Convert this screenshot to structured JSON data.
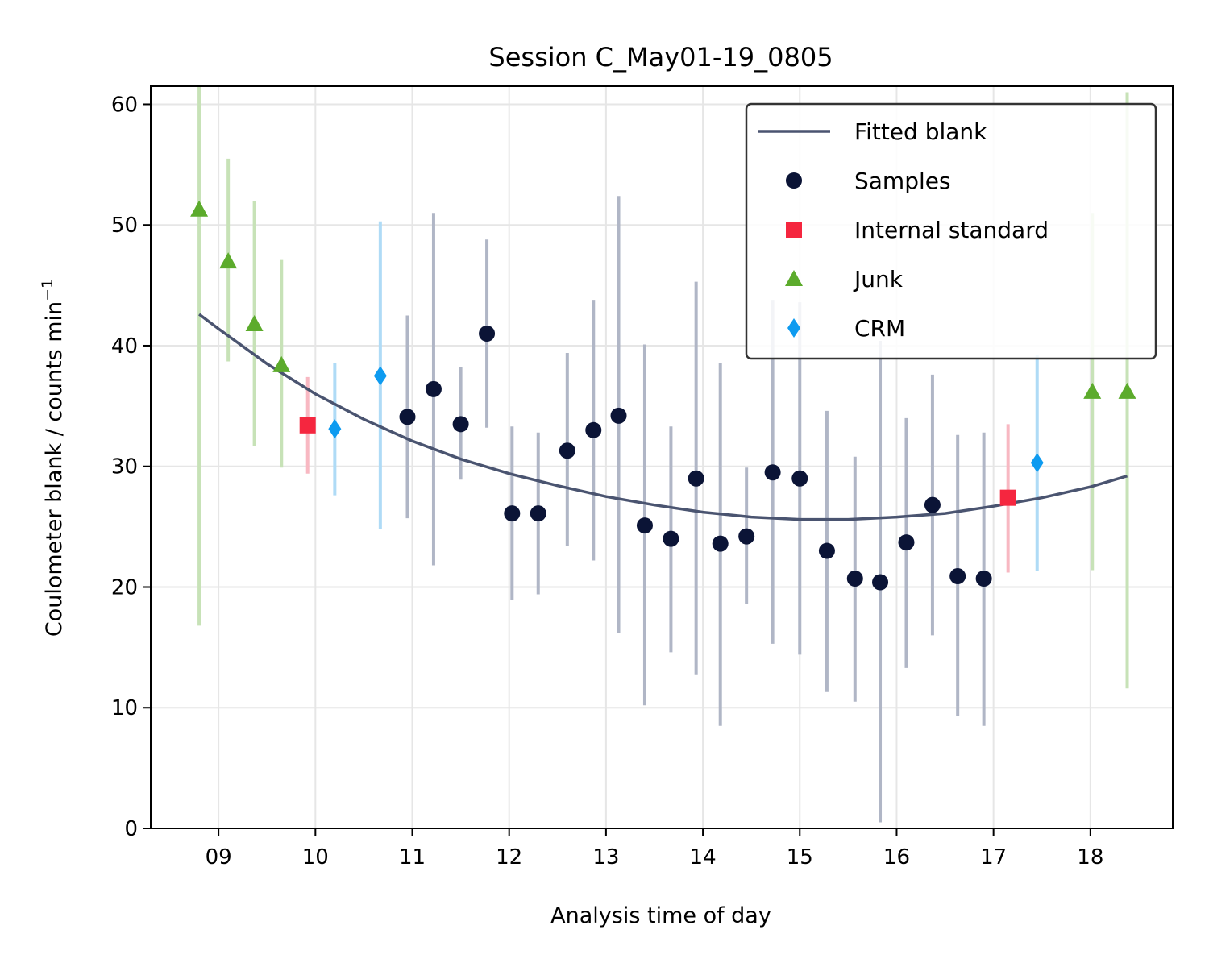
{
  "chart_data": {
    "type": "scatter",
    "title": "Session C_May01-19_0805",
    "xlabel": "Analysis time of day",
    "ylabel": "Coulometer blank / counts min",
    "ylabel_superscript": "−1",
    "xlim": [
      8.3,
      18.85
    ],
    "ylim": [
      0,
      61.5
    ],
    "x_ticks": [
      9,
      10,
      11,
      12,
      13,
      14,
      15,
      16,
      17,
      18
    ],
    "x_tick_labels": [
      "09",
      "10",
      "11",
      "12",
      "13",
      "14",
      "15",
      "16",
      "17",
      "18"
    ],
    "y_ticks": [
      0,
      10,
      20,
      30,
      40,
      50,
      60
    ],
    "y_tick_labels": [
      "0",
      "10",
      "20",
      "30",
      "40",
      "50",
      "60"
    ],
    "grid": true,
    "legend_position": "upper right",
    "legend": [
      "Fitted blank",
      "Samples",
      "Internal standard",
      "Junk",
      "CRM"
    ],
    "colors": {
      "fit": "#4a5470",
      "samples": "#0b1436",
      "samples_err": "#b0b6c6",
      "internal_standard": "#f5263f",
      "internal_standard_err": "#f8b8c2",
      "junk": "#5cab2c",
      "junk_err": "#c7e2b7",
      "crm": "#0e9bf0",
      "crm_err": "#afdbf6"
    },
    "fit": {
      "name": "Fitted blank",
      "x": [
        8.8,
        9.0,
        9.5,
        10.0,
        10.5,
        11.0,
        11.5,
        12.0,
        12.5,
        13.0,
        13.5,
        14.0,
        14.5,
        15.0,
        15.5,
        16.0,
        16.5,
        17.0,
        17.5,
        18.0,
        18.38
      ],
      "y": [
        42.6,
        41.4,
        38.5,
        36.0,
        33.9,
        32.1,
        30.6,
        29.4,
        28.4,
        27.5,
        26.8,
        26.2,
        25.8,
        25.6,
        25.6,
        25.8,
        26.1,
        26.7,
        27.4,
        28.3,
        29.2
      ]
    },
    "series": [
      {
        "name": "Samples",
        "marker": "circle",
        "x": [
          10.95,
          11.22,
          11.5,
          11.77,
          12.03,
          12.3,
          12.6,
          12.87,
          13.13,
          13.4,
          13.67,
          13.93,
          14.18,
          14.45,
          14.72,
          15.0,
          15.28,
          15.57,
          15.83,
          16.1,
          16.37,
          16.63,
          16.9
        ],
        "y": [
          34.1,
          36.4,
          33.5,
          41.0,
          26.1,
          26.1,
          31.3,
          33.0,
          34.2,
          25.1,
          24.0,
          29.0,
          23.6,
          24.2,
          29.5,
          29.0,
          23.0,
          20.7,
          20.4,
          23.7,
          26.8,
          20.9,
          20.7
        ],
        "y_low": [
          25.7,
          21.8,
          28.9,
          33.2,
          18.9,
          19.4,
          23.4,
          22.2,
          16.2,
          10.2,
          14.6,
          12.7,
          8.5,
          18.6,
          15.3,
          14.4,
          11.3,
          10.5,
          0.5,
          13.3,
          16.0,
          9.3,
          8.5
        ],
        "y_high": [
          42.5,
          51.0,
          38.2,
          48.8,
          33.3,
          32.8,
          39.4,
          43.8,
          52.4,
          40.1,
          33.3,
          45.3,
          38.6,
          29.9,
          43.8,
          43.6,
          34.6,
          30.8,
          40.4,
          34.0,
          37.6,
          32.6,
          32.8
        ]
      },
      {
        "name": "Internal standard",
        "marker": "square",
        "x": [
          9.92,
          17.15
        ],
        "y": [
          33.4,
          27.4
        ],
        "y_low": [
          29.4,
          21.2
        ],
        "y_high": [
          37.4,
          33.5
        ]
      },
      {
        "name": "Junk",
        "marker": "triangle",
        "x": [
          8.8,
          9.1,
          9.37,
          9.65,
          18.02,
          18.38
        ],
        "y": [
          51.3,
          47.0,
          41.8,
          38.4,
          36.2,
          36.2
        ],
        "y_low": [
          16.8,
          38.7,
          31.7,
          29.9,
          21.4,
          11.6
        ],
        "y_high": [
          61.5,
          55.5,
          52.0,
          47.1,
          51.0,
          61.0
        ]
      },
      {
        "name": "CRM",
        "marker": "diamond",
        "x": [
          10.2,
          10.67,
          17.45
        ],
        "y": [
          33.1,
          37.5,
          30.3
        ],
        "y_low": [
          27.6,
          24.8,
          21.3
        ],
        "y_high": [
          38.6,
          50.3,
          39.2
        ]
      }
    ]
  }
}
